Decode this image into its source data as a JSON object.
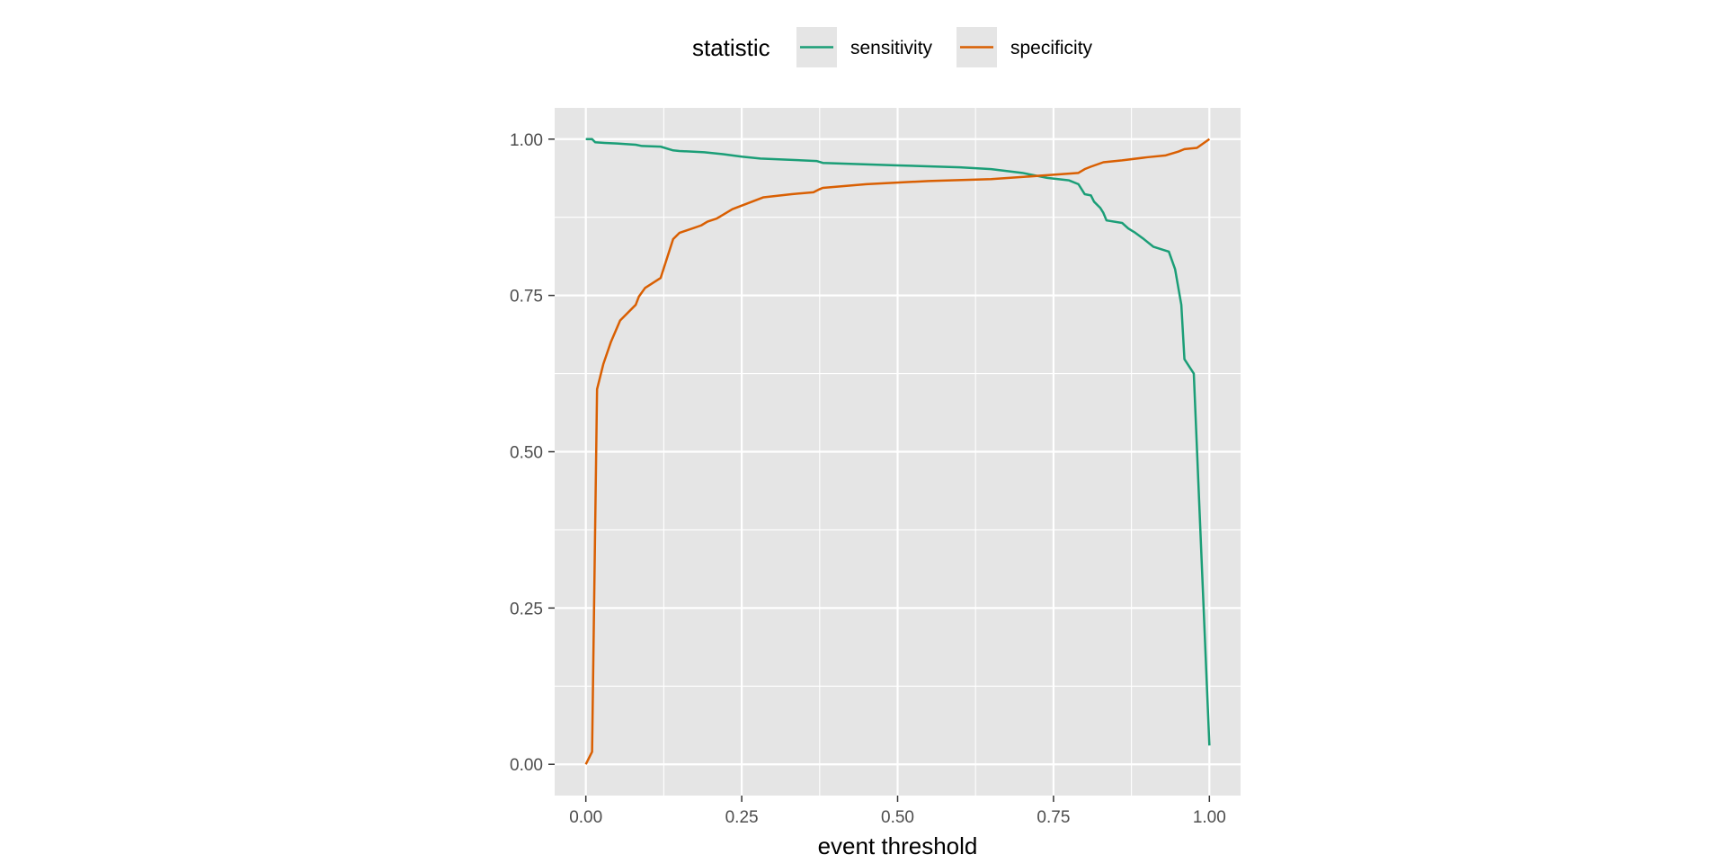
{
  "chart_data": {
    "type": "line",
    "xlabel": "event threshold",
    "ylabel": "",
    "xlim": [
      -0.05,
      1.05
    ],
    "ylim": [
      -0.05,
      1.05
    ],
    "x_ticks": [
      0.0,
      0.25,
      0.5,
      0.75,
      1.0
    ],
    "x_tick_labels": [
      "0.00",
      "0.25",
      "0.50",
      "0.75",
      "1.00"
    ],
    "y_ticks": [
      0.0,
      0.25,
      0.5,
      0.75,
      1.0
    ],
    "y_tick_labels": [
      "0.00",
      "0.25",
      "0.50",
      "0.75",
      "1.00"
    ],
    "grid": true,
    "legend": {
      "title": "statistic",
      "position": "top"
    },
    "series": [
      {
        "name": "sensitivity",
        "color": "#1B9E77",
        "points": [
          [
            0.0,
            1.0
          ],
          [
            0.01,
            1.0
          ],
          [
            0.015,
            0.995
          ],
          [
            0.03,
            0.994
          ],
          [
            0.05,
            0.993
          ],
          [
            0.08,
            0.991
          ],
          [
            0.09,
            0.989
          ],
          [
            0.12,
            0.988
          ],
          [
            0.14,
            0.982
          ],
          [
            0.15,
            0.981
          ],
          [
            0.19,
            0.979
          ],
          [
            0.22,
            0.976
          ],
          [
            0.25,
            0.972
          ],
          [
            0.28,
            0.969
          ],
          [
            0.37,
            0.965
          ],
          [
            0.38,
            0.962
          ],
          [
            0.5,
            0.958
          ],
          [
            0.6,
            0.955
          ],
          [
            0.65,
            0.952
          ],
          [
            0.7,
            0.946
          ],
          [
            0.74,
            0.938
          ],
          [
            0.775,
            0.934
          ],
          [
            0.79,
            0.928
          ],
          [
            0.8,
            0.912
          ],
          [
            0.81,
            0.91
          ],
          [
            0.815,
            0.9
          ],
          [
            0.825,
            0.89
          ],
          [
            0.83,
            0.882
          ],
          [
            0.835,
            0.87
          ],
          [
            0.86,
            0.866
          ],
          [
            0.87,
            0.857
          ],
          [
            0.88,
            0.851
          ],
          [
            0.895,
            0.84
          ],
          [
            0.91,
            0.828
          ],
          [
            0.935,
            0.82
          ],
          [
            0.945,
            0.792
          ],
          [
            0.955,
            0.735
          ],
          [
            0.96,
            0.648
          ],
          [
            0.975,
            0.625
          ],
          [
            1.0,
            0.03
          ]
        ]
      },
      {
        "name": "specificity",
        "color": "#D95F02",
        "points": [
          [
            0.0,
            0.0
          ],
          [
            0.01,
            0.02
          ],
          [
            0.018,
            0.6
          ],
          [
            0.028,
            0.64
          ],
          [
            0.04,
            0.675
          ],
          [
            0.055,
            0.71
          ],
          [
            0.08,
            0.735
          ],
          [
            0.085,
            0.748
          ],
          [
            0.095,
            0.762
          ],
          [
            0.12,
            0.778
          ],
          [
            0.14,
            0.84
          ],
          [
            0.15,
            0.85
          ],
          [
            0.185,
            0.862
          ],
          [
            0.195,
            0.868
          ],
          [
            0.21,
            0.873
          ],
          [
            0.235,
            0.888
          ],
          [
            0.285,
            0.907
          ],
          [
            0.33,
            0.912
          ],
          [
            0.365,
            0.915
          ],
          [
            0.375,
            0.92
          ],
          [
            0.38,
            0.922
          ],
          [
            0.45,
            0.928
          ],
          [
            0.55,
            0.933
          ],
          [
            0.65,
            0.936
          ],
          [
            0.75,
            0.943
          ],
          [
            0.79,
            0.946
          ],
          [
            0.8,
            0.952
          ],
          [
            0.81,
            0.956
          ],
          [
            0.83,
            0.963
          ],
          [
            0.86,
            0.966
          ],
          [
            0.9,
            0.971
          ],
          [
            0.93,
            0.974
          ],
          [
            0.95,
            0.98
          ],
          [
            0.96,
            0.984
          ],
          [
            0.98,
            0.986
          ],
          [
            1.0,
            1.0
          ]
        ]
      }
    ]
  }
}
